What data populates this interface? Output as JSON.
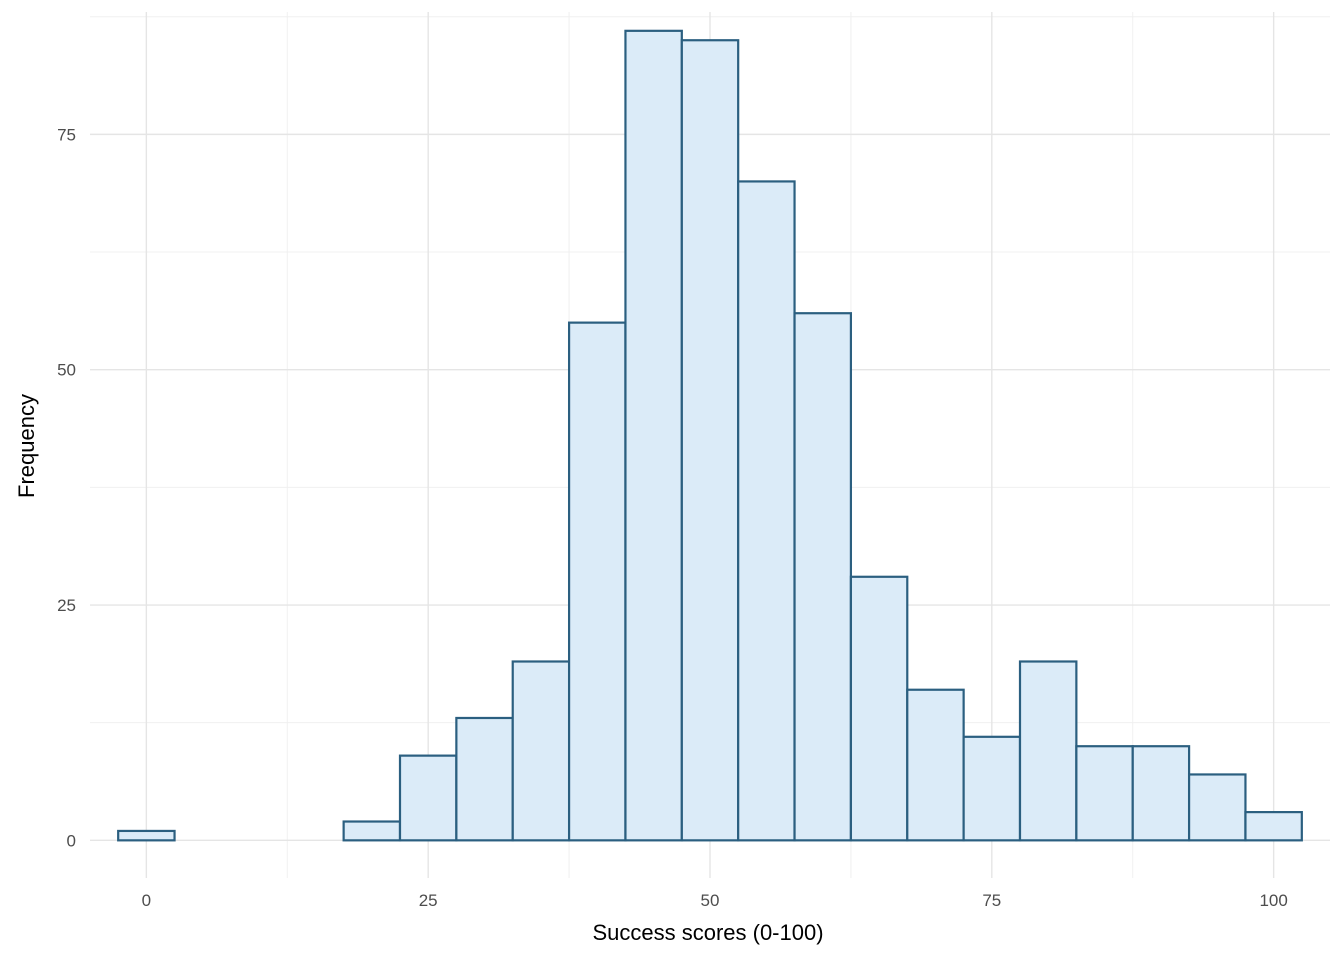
{
  "chart_data": {
    "type": "bar",
    "subtype": "histogram",
    "xlabel": "Success scores (0-100)",
    "ylabel": "Frequency",
    "xlim": [
      -5,
      105
    ],
    "ylim": [
      -4,
      88
    ],
    "x_ticks": [
      0,
      25,
      50,
      75,
      100
    ],
    "y_ticks": [
      0,
      25,
      50,
      75
    ],
    "x_minor_ticks": [
      12.5,
      37.5,
      62.5,
      87.5
    ],
    "y_minor_ticks": [
      12.5,
      37.5,
      62.5,
      87.5
    ],
    "bin_width": 5,
    "bins": [
      {
        "center": 0,
        "count": 1
      },
      {
        "center": 5,
        "count": 0
      },
      {
        "center": 10,
        "count": 0
      },
      {
        "center": 15,
        "count": 0
      },
      {
        "center": 20,
        "count": 2
      },
      {
        "center": 25,
        "count": 9
      },
      {
        "center": 30,
        "count": 13
      },
      {
        "center": 35,
        "count": 19
      },
      {
        "center": 40,
        "count": 55
      },
      {
        "center": 45,
        "count": 86
      },
      {
        "center": 50,
        "count": 85
      },
      {
        "center": 55,
        "count": 70
      },
      {
        "center": 60,
        "count": 56
      },
      {
        "center": 65,
        "count": 28
      },
      {
        "center": 70,
        "count": 16
      },
      {
        "center": 75,
        "count": 11
      },
      {
        "center": 80,
        "count": 19
      },
      {
        "center": 85,
        "count": 10
      },
      {
        "center": 90,
        "count": 10
      },
      {
        "center": 95,
        "count": 7
      },
      {
        "center": 100,
        "count": 3
      }
    ],
    "grid": true,
    "colors": {
      "bar_fill": "#dbebf8",
      "bar_stroke": "#2b5f80",
      "grid_major": "#e5e5e5",
      "grid_minor": "#f0f0f0"
    }
  }
}
